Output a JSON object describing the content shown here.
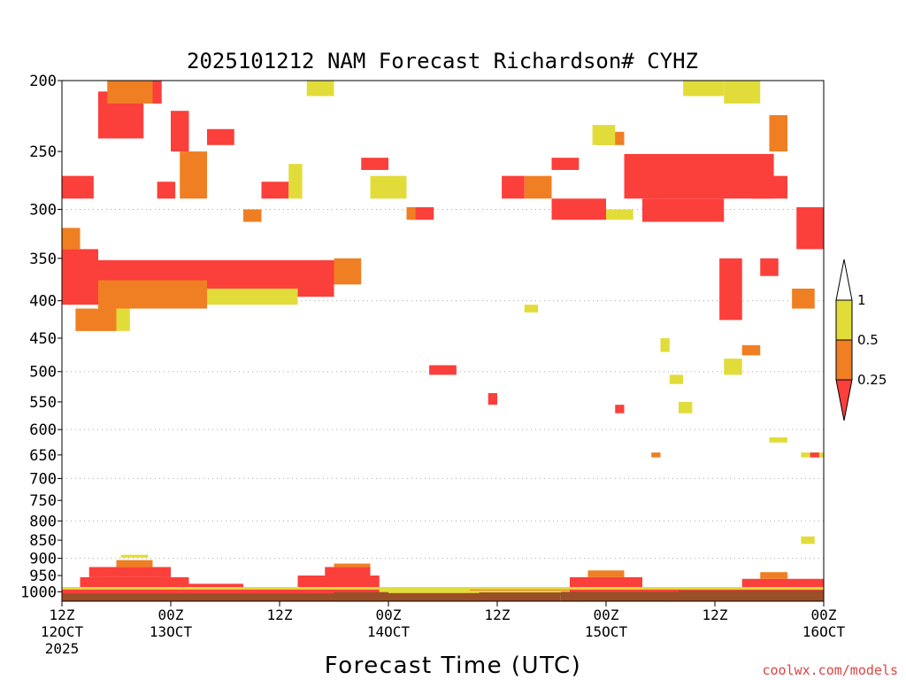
{
  "chart_data": {
    "type": "heatmap",
    "title": "2025101212 NAM Forecast Richardson# CYHZ",
    "xlabel": "Forecast Time (UTC)",
    "watermark": "coolwx.com/models",
    "y_ticks": [
      200,
      250,
      300,
      350,
      400,
      450,
      500,
      550,
      600,
      650,
      700,
      750,
      800,
      850,
      900,
      950,
      1000
    ],
    "y_gridlines": [
      300,
      400,
      500,
      600,
      700,
      800,
      900,
      1000
    ],
    "y_scale": "log-pressure",
    "ylim": [
      200,
      1030
    ],
    "x_ticks": [
      {
        "hour": 0,
        "line1": "12Z",
        "line2": "12OCT",
        "line3": "2025"
      },
      {
        "hour": 12,
        "line1": "00Z",
        "line2": "13OCT",
        "line3": ""
      },
      {
        "hour": 24,
        "line1": "12Z",
        "line2": "",
        "line3": ""
      },
      {
        "hour": 36,
        "line1": "00Z",
        "line2": "14OCT",
        "line3": ""
      },
      {
        "hour": 48,
        "line1": "12Z",
        "line2": "",
        "line3": ""
      },
      {
        "hour": 60,
        "line1": "00Z",
        "line2": "15OCT",
        "line3": ""
      },
      {
        "hour": 72,
        "line1": "12Z",
        "line2": "",
        "line3": ""
      },
      {
        "hour": 84,
        "line1": "00Z",
        "line2": "16OCT",
        "line3": ""
      }
    ],
    "xlim": [
      0,
      84
    ],
    "legend": {
      "placement": "right",
      "labels": [
        "1",
        "0.5",
        "0.25"
      ],
      "colors": {
        "above_1": "#ffffff",
        "0.5_to_1": "#e2dc3a",
        "0.25_to_0.5": "#ef7f22",
        "below_0.25": "#fb3f3b"
      }
    },
    "colors": {
      "yellow": "#e2dc3a",
      "orange": "#ef7f22",
      "red": "#fb3f3b",
      "ground": "#9b4f29"
    },
    "cells": [
      {
        "t0": 0,
        "t1": 4,
        "p0": 340,
        "p1": 405,
        "c": "red"
      },
      {
        "t0": 4,
        "t1": 30,
        "p0": 352,
        "p1": 395,
        "c": "red"
      },
      {
        "t0": 4,
        "t1": 16,
        "p0": 375,
        "p1": 410,
        "c": "orange"
      },
      {
        "t0": 16,
        "t1": 26,
        "p0": 385,
        "p1": 405,
        "c": "yellow"
      },
      {
        "t0": 30,
        "t1": 33,
        "p0": 350,
        "p1": 380,
        "c": "orange"
      },
      {
        "t0": 1.5,
        "t1": 6,
        "p0": 410,
        "p1": 440,
        "c": "orange"
      },
      {
        "t0": 6,
        "t1": 7.5,
        "p0": 410,
        "p1": 440,
        "c": "yellow"
      },
      {
        "t0": 0,
        "t1": 3.5,
        "p0": 270,
        "p1": 290,
        "c": "red"
      },
      {
        "t0": 0,
        "t1": 2,
        "p0": 318,
        "p1": 340,
        "c": "orange"
      },
      {
        "t0": 4,
        "t1": 9,
        "p0": 207,
        "p1": 240,
        "c": "red"
      },
      {
        "t0": 5,
        "t1": 8,
        "p0": 200,
        "p1": 215,
        "c": "orange"
      },
      {
        "t0": 8,
        "t1": 10,
        "p0": 200,
        "p1": 215,
        "c": "orange"
      },
      {
        "t0": 10,
        "t1": 11,
        "p0": 200,
        "p1": 215,
        "c": "red"
      },
      {
        "t0": 12,
        "t1": 14,
        "p0": 220,
        "p1": 250,
        "c": "red"
      },
      {
        "t0": 13,
        "t1": 16,
        "p0": 250,
        "p1": 290,
        "c": "orange"
      },
      {
        "t0": 10.5,
        "t1": 12.5,
        "p0": 275,
        "p1": 290,
        "c": "red"
      },
      {
        "t0": 16,
        "t1": 19,
        "p0": 233,
        "p1": 245,
        "c": "red"
      },
      {
        "t0": 22,
        "t1": 25,
        "p0": 275,
        "p1": 290,
        "c": "red"
      },
      {
        "t0": 25,
        "t1": 26.5,
        "p0": 260,
        "p1": 290,
        "c": "yellow"
      },
      {
        "t0": 20,
        "t1": 22,
        "p0": 300,
        "p1": 312,
        "c": "orange"
      },
      {
        "t0": 27,
        "t1": 30,
        "p0": 200,
        "p1": 210,
        "c": "yellow"
      },
      {
        "t0": 33,
        "t1": 36,
        "p0": 255,
        "p1": 265,
        "c": "red"
      },
      {
        "t0": 34,
        "t1": 38,
        "p0": 270,
        "p1": 290,
        "c": "yellow"
      },
      {
        "t0": 38.5,
        "t1": 41,
        "p0": 298,
        "p1": 310,
        "c": "red"
      },
      {
        "t0": 38,
        "t1": 39,
        "p0": 298,
        "p1": 310,
        "c": "orange"
      },
      {
        "t0": 40.5,
        "t1": 43.5,
        "p0": 490,
        "p1": 505,
        "c": "red"
      },
      {
        "t0": 47,
        "t1": 48,
        "p0": 535,
        "p1": 555,
        "c": "red"
      },
      {
        "t0": 48.5,
        "t1": 51,
        "p0": 270,
        "p1": 290,
        "c": "red"
      },
      {
        "t0": 51,
        "t1": 54,
        "p0": 270,
        "p1": 290,
        "c": "orange"
      },
      {
        "t0": 54,
        "t1": 57,
        "p0": 255,
        "p1": 265,
        "c": "red"
      },
      {
        "t0": 54,
        "t1": 60,
        "p0": 290,
        "p1": 310,
        "c": "red"
      },
      {
        "t0": 59,
        "t1": 62,
        "p0": 235,
        "p1": 245,
        "c": "orange"
      },
      {
        "t0": 62,
        "t1": 78.5,
        "p0": 252,
        "p1": 290,
        "c": "red"
      },
      {
        "t0": 64,
        "t1": 73,
        "p0": 290,
        "p1": 312,
        "c": "red"
      },
      {
        "t0": 76,
        "t1": 80,
        "p0": 270,
        "p1": 290,
        "c": "red"
      },
      {
        "t0": 78,
        "t1": 80,
        "p0": 223,
        "p1": 250,
        "c": "orange"
      },
      {
        "t0": 81,
        "t1": 84,
        "p0": 298,
        "p1": 340,
        "c": "red"
      },
      {
        "t0": 72.5,
        "t1": 75,
        "p0": 350,
        "p1": 425,
        "c": "red"
      },
      {
        "t0": 77,
        "t1": 79,
        "p0": 350,
        "p1": 370,
        "c": "red"
      },
      {
        "t0": 80.5,
        "t1": 83,
        "p0": 385,
        "p1": 410,
        "c": "orange"
      },
      {
        "t0": 75,
        "t1": 77,
        "p0": 460,
        "p1": 475,
        "c": "orange"
      },
      {
        "t0": 73,
        "t1": 75,
        "p0": 480,
        "p1": 505,
        "c": "yellow"
      },
      {
        "t0": 68.5,
        "t1": 73,
        "p0": 200,
        "p1": 210,
        "c": "yellow"
      },
      {
        "t0": 73,
        "t1": 77,
        "p0": 200,
        "p1": 215,
        "c": "yellow"
      },
      {
        "t0": 58.5,
        "t1": 61,
        "p0": 230,
        "p1": 245,
        "c": "yellow"
      },
      {
        "t0": 60,
        "t1": 63,
        "p0": 300,
        "p1": 310,
        "c": "yellow"
      },
      {
        "t0": 51,
        "t1": 52.5,
        "p0": 405,
        "p1": 415,
        "c": "yellow"
      },
      {
        "t0": 66,
        "t1": 67,
        "p0": 450,
        "p1": 470,
        "c": "yellow"
      },
      {
        "t0": 67,
        "t1": 68.5,
        "p0": 505,
        "p1": 520,
        "c": "yellow"
      },
      {
        "t0": 61,
        "t1": 62,
        "p0": 555,
        "p1": 570,
        "c": "red"
      },
      {
        "t0": 68,
        "t1": 69.5,
        "p0": 550,
        "p1": 570,
        "c": "yellow"
      },
      {
        "t0": 65,
        "t1": 66,
        "p0": 645,
        "p1": 655,
        "c": "orange"
      },
      {
        "t0": 78,
        "t1": 80,
        "p0": 615,
        "p1": 625,
        "c": "yellow"
      },
      {
        "t0": 81.5,
        "t1": 84,
        "p0": 645,
        "p1": 655,
        "c": "yellow"
      },
      {
        "t0": 82.5,
        "t1": 83.5,
        "p0": 645,
        "p1": 655,
        "c": "red"
      },
      {
        "t0": 81.5,
        "t1": 83,
        "p0": 840,
        "p1": 860,
        "c": "yellow"
      },
      {
        "t0": 0,
        "t1": 84,
        "p0": 990,
        "p1": 1010,
        "c": "red"
      },
      {
        "t0": 2,
        "t1": 14,
        "p0": 955,
        "p1": 990,
        "c": "red"
      },
      {
        "t0": 14,
        "t1": 20,
        "p0": 975,
        "p1": 990,
        "c": "red"
      },
      {
        "t0": 3,
        "t1": 12,
        "p0": 925,
        "p1": 955,
        "c": "red"
      },
      {
        "t0": 6,
        "t1": 10,
        "p0": 905,
        "p1": 925,
        "c": "orange"
      },
      {
        "t0": 6.5,
        "t1": 9.5,
        "p0": 890,
        "p1": 898,
        "c": "yellow"
      },
      {
        "t0": 26,
        "t1": 35,
        "p0": 950,
        "p1": 990,
        "c": "red"
      },
      {
        "t0": 29,
        "t1": 34,
        "p0": 925,
        "p1": 950,
        "c": "red"
      },
      {
        "t0": 30,
        "t1": 34,
        "p0": 915,
        "p1": 925,
        "c": "orange"
      },
      {
        "t0": 56,
        "t1": 64,
        "p0": 955,
        "p1": 990,
        "c": "red"
      },
      {
        "t0": 58,
        "t1": 62,
        "p0": 935,
        "p1": 955,
        "c": "orange"
      },
      {
        "t0": 75,
        "t1": 84,
        "p0": 960,
        "p1": 990,
        "c": "red"
      },
      {
        "t0": 77,
        "t1": 80,
        "p0": 940,
        "p1": 960,
        "c": "orange"
      },
      {
        "t0": 0,
        "t1": 84,
        "p0": 985,
        "p1": 993,
        "c": "yellow"
      },
      {
        "t0": 35,
        "t1": 45,
        "p0": 990,
        "p1": 1005,
        "c": "yellow"
      },
      {
        "t0": 45,
        "t1": 56,
        "p0": 995,
        "p1": 1005,
        "c": "yellow"
      }
    ],
    "ground": [
      {
        "t0": 0,
        "t1": 30,
        "p": 1005
      },
      {
        "t0": 30,
        "t1": 36,
        "p": 1001
      },
      {
        "t0": 36,
        "t1": 46,
        "p": 1004
      },
      {
        "t0": 46,
        "t1": 55,
        "p": 1002
      },
      {
        "t0": 55,
        "t1": 68,
        "p": 1000
      },
      {
        "t0": 68,
        "t1": 84,
        "p": 996
      }
    ]
  }
}
